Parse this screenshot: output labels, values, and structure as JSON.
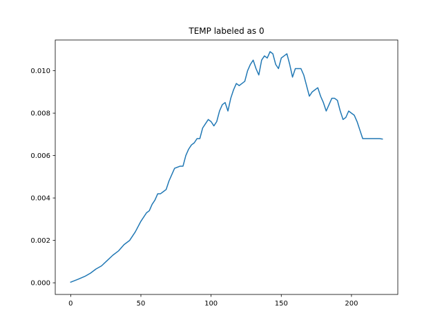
{
  "chart_data": {
    "type": "line",
    "title": "TEMP labeled as 0",
    "xlabel": "",
    "ylabel": "",
    "xlim": [
      -11,
      233
    ],
    "ylim": [
      -0.00055,
      0.01145
    ],
    "xticks": [
      0,
      50,
      100,
      150,
      200
    ],
    "xtick_labels": [
      "0",
      "50",
      "100",
      "150",
      "200"
    ],
    "yticks": [
      0.0,
      0.002,
      0.004,
      0.006,
      0.008,
      0.01
    ],
    "ytick_labels": [
      "0.000",
      "0.002",
      "0.004",
      "0.006",
      "0.008",
      "0.010"
    ],
    "grid": false,
    "legend": "none",
    "series": [
      {
        "color": "#1f77b4",
        "x": [
          0,
          5,
          10,
          14,
          18,
          22,
          26,
          30,
          34,
          38,
          42,
          46,
          50,
          54,
          56,
          58,
          60,
          62,
          64,
          66,
          68,
          70,
          74,
          78,
          80,
          82,
          84,
          86,
          88,
          90,
          92,
          94,
          96,
          98,
          100,
          102,
          104,
          106,
          108,
          110,
          112,
          114,
          116,
          118,
          120,
          122,
          124,
          126,
          128,
          130,
          132,
          134,
          136,
          138,
          140,
          142,
          144,
          146,
          148,
          150,
          152,
          154,
          156,
          158,
          160,
          162,
          164,
          166,
          168,
          170,
          172,
          174,
          176,
          178,
          180,
          182,
          184,
          186,
          188,
          190,
          192,
          194,
          196,
          198,
          200,
          202,
          204,
          206,
          208,
          210,
          212,
          214,
          216,
          218,
          220,
          222
        ],
        "y": [
          3e-05,
          0.00016,
          0.0003,
          0.00045,
          0.00065,
          0.0008,
          0.00105,
          0.0013,
          0.0015,
          0.0018,
          0.002,
          0.0024,
          0.0029,
          0.0033,
          0.0034,
          0.0037,
          0.0039,
          0.0042,
          0.0042,
          0.0043,
          0.0044,
          0.0048,
          0.0054,
          0.0055,
          0.0055,
          0.006,
          0.0063,
          0.0065,
          0.0066,
          0.0068,
          0.0068,
          0.0073,
          0.0075,
          0.0077,
          0.0076,
          0.0074,
          0.0076,
          0.0081,
          0.0084,
          0.0085,
          0.0081,
          0.0087,
          0.0091,
          0.0094,
          0.0093,
          0.0094,
          0.0095,
          0.01,
          0.0103,
          0.0105,
          0.0101,
          0.0098,
          0.0105,
          0.0107,
          0.0106,
          0.0109,
          0.0108,
          0.0103,
          0.0101,
          0.0106,
          0.0107,
          0.0108,
          0.0103,
          0.0097,
          0.0101,
          0.0101,
          0.0101,
          0.0098,
          0.0093,
          0.0088,
          0.009,
          0.0091,
          0.0092,
          0.0088,
          0.0085,
          0.0081,
          0.0084,
          0.0087,
          0.0087,
          0.0086,
          0.0081,
          0.0077,
          0.0078,
          0.0081,
          0.008,
          0.0079,
          0.0076,
          0.0072,
          0.0068,
          0.0068,
          0.0068,
          0.0068,
          0.0068,
          0.0068,
          0.0068,
          0.00678
        ]
      }
    ]
  }
}
